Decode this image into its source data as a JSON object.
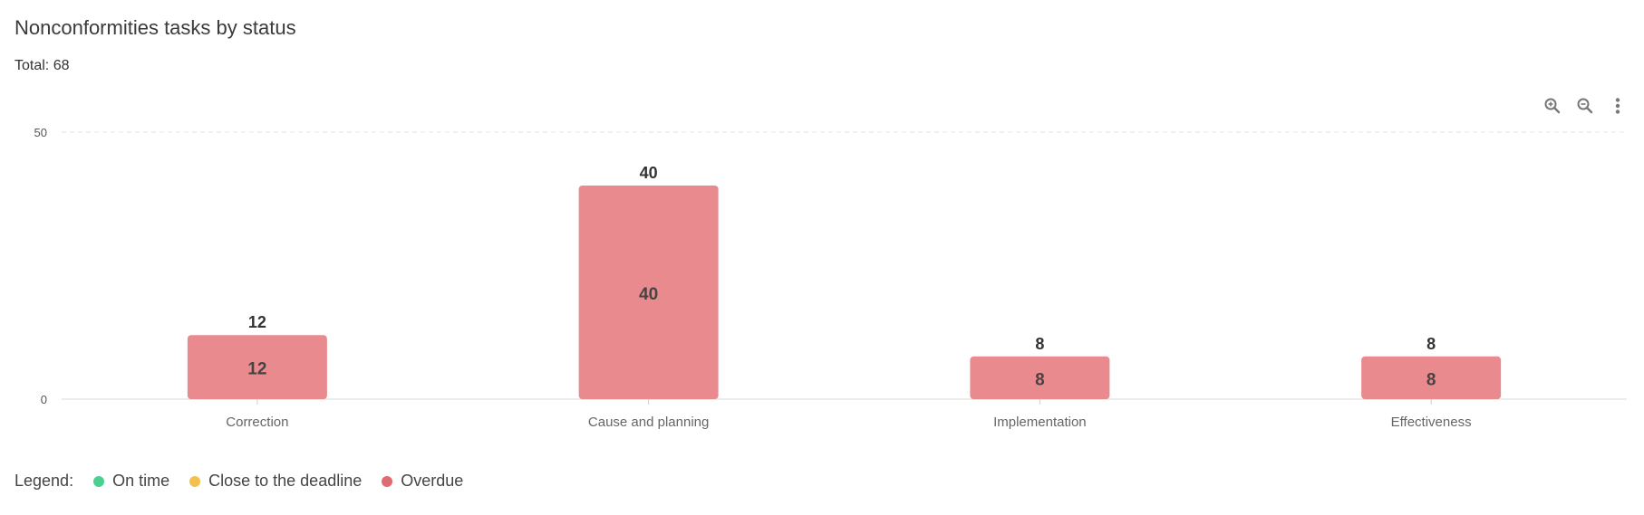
{
  "header": {
    "title": "Nonconformities tasks by status",
    "total": "Total: 68"
  },
  "toolbar": {
    "zoom_in_icon": "zoom-in-icon",
    "zoom_out_icon": "zoom-out-icon",
    "menu_icon": "more-vertical-icon"
  },
  "legend": {
    "title": "Legend:",
    "items": [
      {
        "label": "On time",
        "color": "#4cd08f"
      },
      {
        "label": "Close to the deadline",
        "color": "#f2c14e"
      },
      {
        "label": "Overdue",
        "color": "#e06a6f"
      }
    ]
  },
  "chart_data": {
    "type": "bar",
    "categories": [
      "Correction",
      "Cause and planning",
      "Implementation",
      "Effectiveness"
    ],
    "series": [
      {
        "name": "Overdue",
        "color": "#e88a8e",
        "values": [
          12,
          40,
          8,
          8
        ]
      }
    ],
    "totals": [
      12,
      40,
      8,
      8
    ],
    "ylim": [
      0,
      50
    ],
    "yticks": [
      0,
      50
    ],
    "grid": true,
    "legend_position": "bottom-left"
  }
}
